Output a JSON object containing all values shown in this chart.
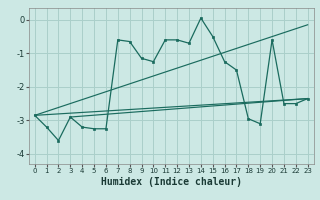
{
  "xlabel": "Humidex (Indice chaleur)",
  "bg_color": "#cce8e4",
  "grid_color": "#aacfca",
  "line_color": "#1a6b5e",
  "xlim": [
    -0.5,
    23.5
  ],
  "ylim": [
    -4.3,
    0.35
  ],
  "yticks": [
    0,
    -1,
    -2,
    -3,
    -4
  ],
  "xticks": [
    0,
    1,
    2,
    3,
    4,
    5,
    6,
    7,
    8,
    9,
    10,
    11,
    12,
    13,
    14,
    15,
    16,
    17,
    18,
    19,
    20,
    21,
    22,
    23
  ],
  "series1_x": [
    0,
    1,
    2,
    3,
    4,
    5,
    6,
    7,
    8,
    9,
    10,
    11,
    12,
    13,
    14,
    15,
    16,
    17,
    18,
    19,
    20,
    21,
    22,
    23
  ],
  "series1_y": [
    -2.85,
    -3.2,
    -3.6,
    -2.9,
    -3.2,
    -3.25,
    -3.25,
    -0.6,
    -0.65,
    -1.15,
    -1.25,
    -0.6,
    -0.6,
    -0.7,
    0.05,
    -0.5,
    -1.25,
    -1.5,
    -2.95,
    -3.1,
    -0.6,
    -2.5,
    -2.5,
    -2.35
  ],
  "trend1_x": [
    0,
    23
  ],
  "trend1_y": [
    -2.85,
    -2.35
  ],
  "trend2_x": [
    0,
    23
  ],
  "trend2_y": [
    -2.85,
    -0.15
  ],
  "trend3_x": [
    3,
    23
  ],
  "trend3_y": [
    -2.9,
    -2.35
  ]
}
